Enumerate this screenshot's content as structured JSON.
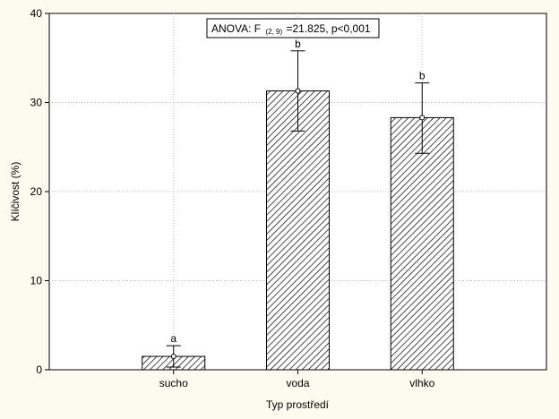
{
  "chart_data": {
    "type": "bar",
    "categories": [
      "sucho",
      "voda",
      "vlhko"
    ],
    "values": [
      1.5,
      31.3,
      28.3
    ],
    "error": [
      {
        "low": 0.3,
        "high": 2.7
      },
      {
        "low": 26.8,
        "high": 35.8
      },
      {
        "low": 24.3,
        "high": 32.2
      }
    ],
    "significance_labels": [
      "a",
      "b",
      "b"
    ],
    "xlabel": "Typ prostředí",
    "ylabel": "Klíčivost (%)",
    "ylim": [
      0,
      40
    ],
    "yticks": [
      0,
      10,
      20,
      30,
      40
    ],
    "grid": true,
    "annotation": {
      "prefix": "ANOVA: F",
      "subscript": "(2, 9)",
      "suffix": "=21.825, p<0,001"
    },
    "colors": {
      "background": "#fcfbf0",
      "plot_area": "#ffffff",
      "bar_hatch": "#000000",
      "grid": "#c0c0c0"
    }
  }
}
